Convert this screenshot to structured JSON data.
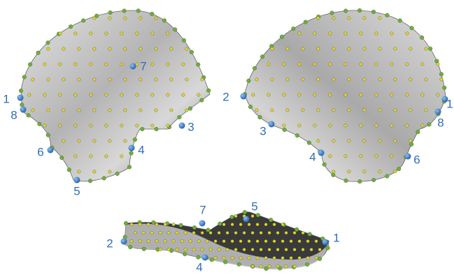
{
  "views": [
    {
      "landmarks": [
        "1",
        "8",
        "6",
        "5",
        "4",
        "3",
        "7"
      ]
    },
    {
      "landmarks": [
        "2",
        "3",
        "4",
        "6",
        "8",
        "1"
      ]
    },
    {
      "landmarks": [
        "2",
        "7",
        "4",
        "5",
        "1"
      ]
    }
  ]
}
